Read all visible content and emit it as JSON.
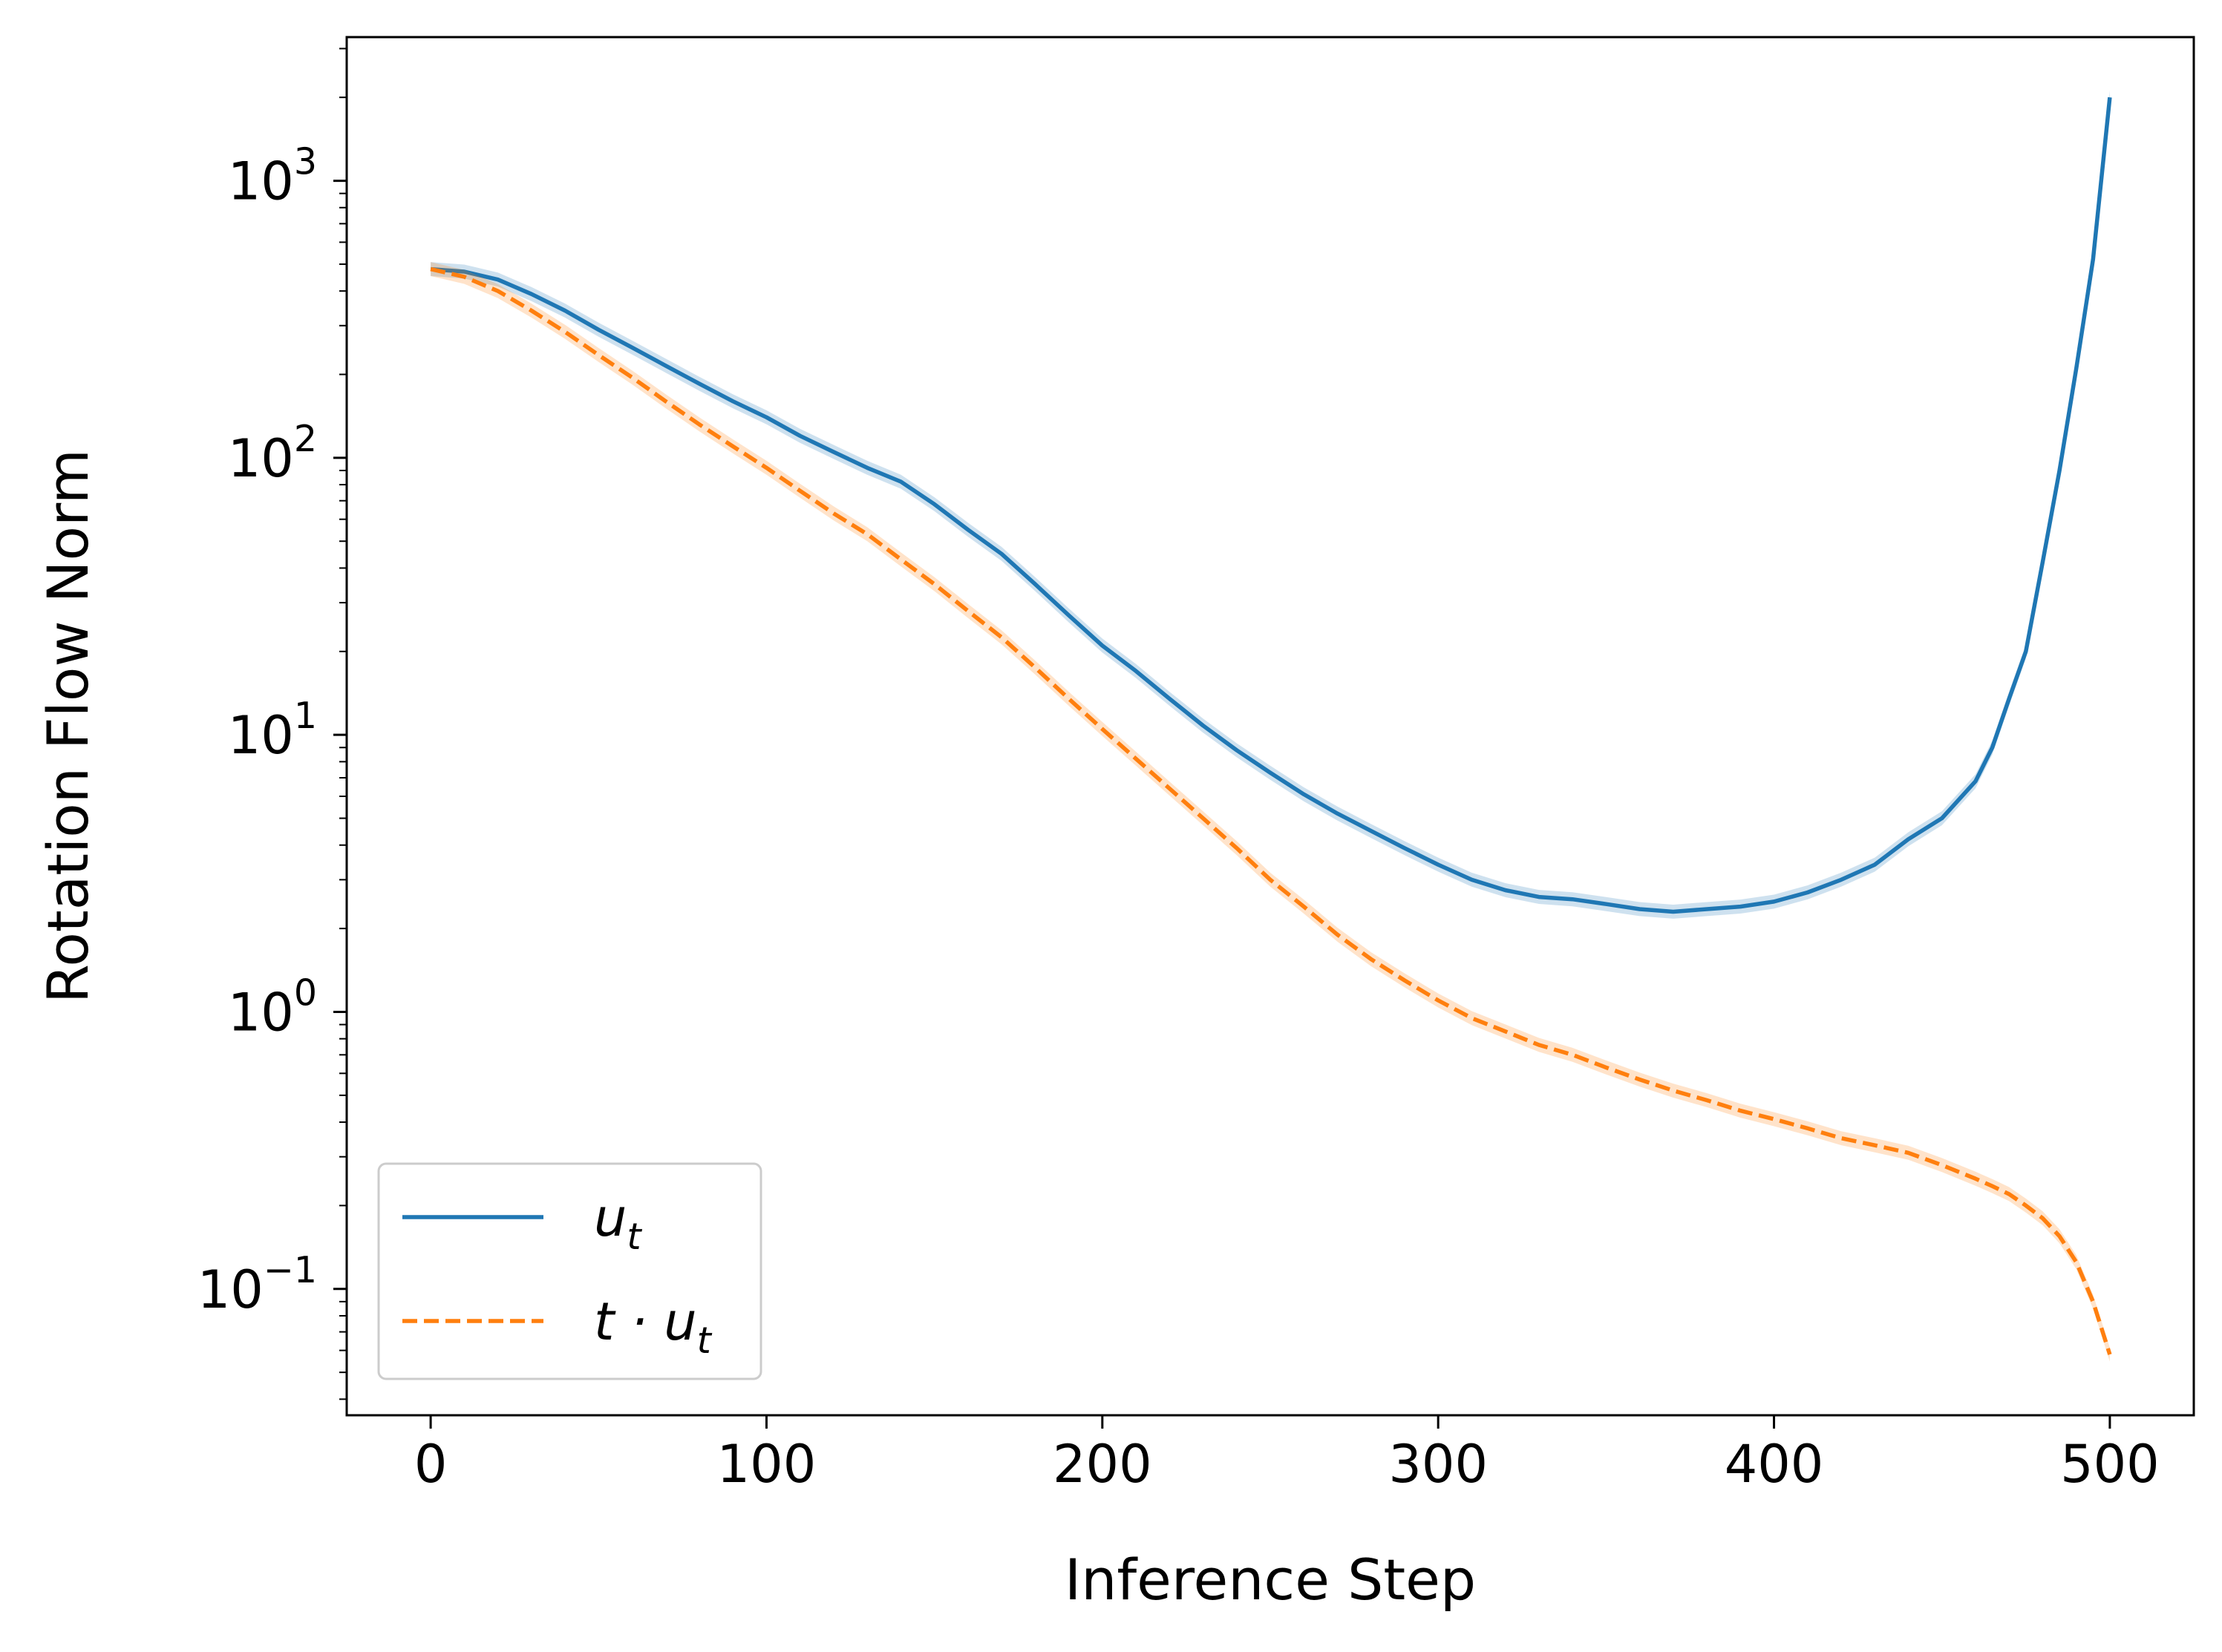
{
  "chart_data": {
    "type": "line",
    "xlabel": "Inference Step",
    "ylabel": "Rotation Flow Norm",
    "xlim": [
      -25,
      525
    ],
    "ylim": [
      0.035,
      3300
    ],
    "yscale": "log",
    "xticks": [
      {
        "value": 0,
        "label": "0"
      },
      {
        "value": 100,
        "label": "100"
      },
      {
        "value": 200,
        "label": "200"
      },
      {
        "value": 300,
        "label": "300"
      },
      {
        "value": 400,
        "label": "400"
      },
      {
        "value": 500,
        "label": "500"
      }
    ],
    "yticks": [
      {
        "value": 0.1,
        "base": "10",
        "exp": "−1"
      },
      {
        "value": 1,
        "base": "10",
        "exp": "0"
      },
      {
        "value": 10,
        "base": "10",
        "exp": "1"
      },
      {
        "value": 100,
        "base": "10",
        "exp": "2"
      },
      {
        "value": 1000,
        "base": "10",
        "exp": "3"
      }
    ],
    "grid": false,
    "legend_position": "lower-left",
    "series": [
      {
        "name": "u_t",
        "legend_main": "u",
        "legend_sub": "t",
        "color": "#1f77b4",
        "style": "solid",
        "x": [
          0,
          10,
          20,
          30,
          40,
          50,
          60,
          70,
          80,
          90,
          100,
          110,
          120,
          130,
          140,
          150,
          160,
          170,
          180,
          190,
          200,
          210,
          220,
          230,
          240,
          250,
          260,
          270,
          280,
          290,
          300,
          310,
          320,
          330,
          340,
          350,
          360,
          370,
          380,
          390,
          400,
          410,
          420,
          430,
          440,
          450,
          460,
          465,
          470,
          475,
          480,
          485,
          490,
          495,
          500
        ],
        "y": [
          480,
          470,
          440,
          390,
          340,
          290,
          250,
          215,
          185,
          160,
          140,
          120,
          105,
          92,
          82,
          68,
          55,
          45,
          35,
          27,
          21,
          17,
          13.5,
          10.8,
          8.8,
          7.3,
          6.1,
          5.2,
          4.5,
          3.9,
          3.4,
          3.0,
          2.75,
          2.6,
          2.55,
          2.45,
          2.35,
          2.3,
          2.35,
          2.4,
          2.5,
          2.7,
          3.0,
          3.4,
          4.2,
          5.0,
          6.8,
          9.0,
          13.5,
          20,
          42,
          90,
          210,
          520,
          2000
        ]
      },
      {
        "name": "t·u_t",
        "legend_main": "t · u",
        "legend_sub": "t",
        "color": "#ff7f0e",
        "style": "dashed",
        "x": [
          0,
          10,
          20,
          30,
          40,
          50,
          60,
          70,
          80,
          90,
          100,
          110,
          120,
          130,
          140,
          150,
          160,
          170,
          180,
          190,
          200,
          210,
          220,
          230,
          240,
          250,
          260,
          270,
          280,
          290,
          300,
          310,
          320,
          330,
          340,
          350,
          360,
          370,
          380,
          390,
          400,
          410,
          420,
          430,
          440,
          450,
          460,
          465,
          470,
          475,
          480,
          485,
          490,
          495,
          500
        ],
        "y": [
          480,
          450,
          400,
          340,
          285,
          235,
          195,
          160,
          132,
          110,
          92,
          76,
          63,
          53,
          43,
          35,
          28,
          22.5,
          17.5,
          13.5,
          10.5,
          8.2,
          6.4,
          5.0,
          3.9,
          3.0,
          2.4,
          1.9,
          1.55,
          1.3,
          1.1,
          0.95,
          0.85,
          0.76,
          0.7,
          0.63,
          0.57,
          0.52,
          0.48,
          0.44,
          0.41,
          0.38,
          0.35,
          0.33,
          0.31,
          0.28,
          0.25,
          0.235,
          0.22,
          0.2,
          0.18,
          0.155,
          0.125,
          0.09,
          0.058
        ]
      }
    ]
  }
}
